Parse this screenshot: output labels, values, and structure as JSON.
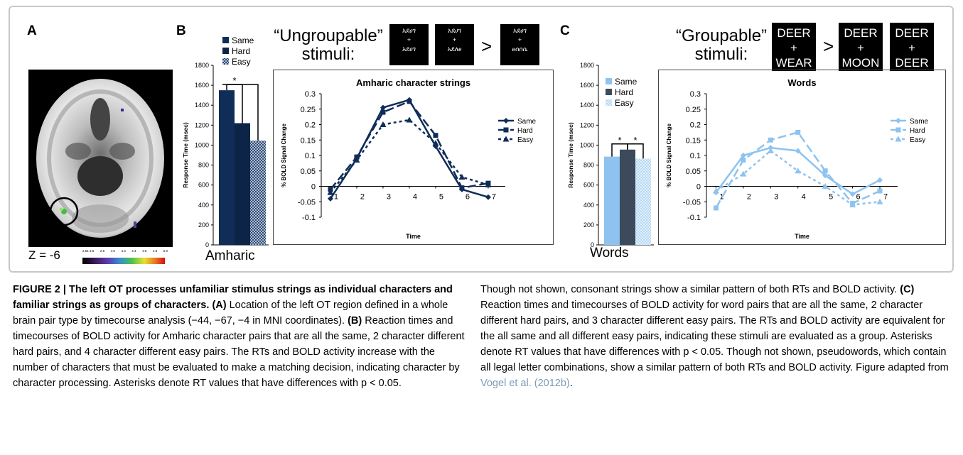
{
  "panels": {
    "A": {
      "letter": "A",
      "z_label": "Z = -6",
      "colorbar_ticks": [
        "2.51 3.6",
        "2.5",
        "4.0",
        "4.3",
        "4.4",
        "4.5",
        "4.8",
        "5.0"
      ]
    },
    "B": {
      "letter": "B",
      "title_line1": "“Ungroupable”",
      "title_line2": "stimuli:",
      "stim1": [
        "አደሀገ",
        "+",
        "አደሀገ"
      ],
      "stim2": [
        "አደሀገ",
        "+",
        "አደለፀ"
      ],
      "stim3": [
        "አደሀገ",
        "+",
        "ፀሰሰሴ"
      ],
      "gt": ">",
      "category": "Amharic"
    },
    "C": {
      "letter": "C",
      "title_line1": "“Groupable”",
      "title_line2": "stimuli:",
      "stim1": [
        "DEER",
        "+",
        "WEAR"
      ],
      "stim2": [
        "DEER",
        "+",
        "MOON"
      ],
      "stim3": [
        "DEER",
        "+",
        "DEER"
      ],
      "gt": ">",
      "category": "Words"
    }
  },
  "colors": {
    "amharic_same": "#0f2d57",
    "amharic_hard": "#0c2447",
    "amharic_easy": "#2c4a78",
    "words_same": "#8ec3ef",
    "words_hard": "#3c4a5c",
    "words_easy": "#b4d8f5"
  },
  "chart_data": [
    {
      "type": "bar",
      "panel": "B",
      "categories": [
        "Same",
        "Hard",
        "Easy"
      ],
      "values": [
        1550,
        1220,
        1045
      ],
      "ylabel": "Response Time (msec)",
      "ylim": [
        0,
        1800
      ],
      "yticks": [
        0,
        200,
        400,
        600,
        800,
        1000,
        1200,
        1400,
        1600,
        1800
      ],
      "legend": [
        "Same",
        "Hard",
        "Easy"
      ],
      "significance": "*"
    },
    {
      "type": "line",
      "panel": "B",
      "title": "Amharic character strings",
      "xlabel": "Time",
      "ylabel": "% BOLD Signal Change",
      "x": [
        1,
        2,
        3,
        4,
        5,
        6,
        7
      ],
      "ylim": [
        -0.1,
        0.3
      ],
      "yticks": [
        "0.3",
        "0.25",
        "0.2",
        "0.15",
        "0.1",
        "0.05",
        "0",
        "-0.05",
        "-0.1"
      ],
      "series": [
        {
          "name": "Same",
          "values": [
            -0.04,
            0.09,
            0.255,
            0.28,
            0.13,
            -0.01,
            -0.035
          ]
        },
        {
          "name": "Hard",
          "values": [
            -0.01,
            0.095,
            0.24,
            0.275,
            0.165,
            -0.005,
            0.01
          ]
        },
        {
          "name": "Easy",
          "values": [
            -0.02,
            0.085,
            0.2,
            0.215,
            0.14,
            0.03,
            0.005
          ]
        }
      ]
    },
    {
      "type": "bar",
      "panel": "C",
      "categories": [
        "Same",
        "Hard",
        "Easy"
      ],
      "values": [
        885,
        955,
        865
      ],
      "ylabel": "Response Time (msec)",
      "ylim": [
        0,
        1800
      ],
      "yticks": [
        0,
        200,
        400,
        600,
        800,
        1000,
        1200,
        1400,
        1600,
        1800
      ],
      "legend": [
        "Same",
        "Hard",
        "Easy"
      ],
      "significance": "*"
    },
    {
      "type": "line",
      "panel": "C",
      "title": "Words",
      "xlabel": "Time",
      "ylabel": "% BOLD Signal Change",
      "x": [
        1,
        2,
        3,
        4,
        5,
        6,
        7
      ],
      "ylim": [
        -0.1,
        0.3
      ],
      "yticks": [
        "0.3",
        "0.25",
        "0.2",
        "0.15",
        "0.1",
        "0.05",
        "0",
        "-0.05",
        "-0.1"
      ],
      "series": [
        {
          "name": "Same",
          "values": [
            -0.02,
            0.1,
            0.125,
            0.115,
            0.035,
            -0.025,
            0.02
          ]
        },
        {
          "name": "Hard",
          "values": [
            -0.07,
            0.085,
            0.15,
            0.175,
            0.05,
            -0.055,
            -0.015
          ]
        },
        {
          "name": "Easy",
          "values": [
            -0.015,
            0.04,
            0.115,
            0.05,
            0.0,
            -0.06,
            -0.05
          ]
        }
      ]
    }
  ],
  "caption": {
    "lead": "FIGURE 2 | The left OT processes unfamiliar stimulus strings as individual characters and familiar strings as groups of characters.",
    "A_tag": "(A)",
    "A_text": "Location of the left OT region defined in a whole brain pair type by timecourse analysis (−44, −67, −4 in MNI coordinates).",
    "B_tag": "(B)",
    "B_text": "Reaction times and timecourses of BOLD activity for Amharic character pairs that are all the same, 2 character different hard pairs, and 4 character different easy pairs. The RTs and BOLD activity increase with the number of characters that must be evaluated to make a matching decision, indicating character by character processing. Asterisks denote RT values that have differences with p < 0.05. Though not shown, consonant strings show a similar pattern of both RTs and BOLD activity.",
    "C_tag": "(C)",
    "C_text": "Reaction times and timecourses of BOLD activity for word pairs that are all the same, 2 character different hard pairs, and 3 character different easy pairs. The RTs and BOLD activity are equivalent for the all same and all different easy pairs, indicating these stimuli are evaluated as a group. Asterisks denote RT values that have differences with p < 0.05. Though not shown, pseudowords, which contain all legal letter combinations, show a similar pattern of both RTs and BOLD activity. Figure adapted from",
    "citation": "Vogel et al. (2012b)",
    "end": "."
  }
}
